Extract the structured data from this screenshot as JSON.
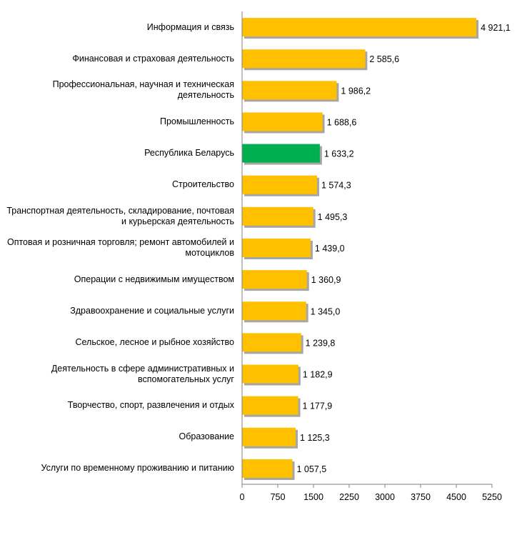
{
  "chart_data": {
    "type": "bar",
    "orientation": "horizontal",
    "categories": [
      "Информация  и связь",
      "Финансовая и страховая деятельность",
      "Профессиональная,  научная и техническая деятельность",
      "Промышленность",
      "Республика Беларусь",
      "Строительство",
      "Транспортная  деятельность, складирование, почтовая  и курьерская деятельность",
      "Оптовая  и розничная торговля;  ремонт автомобилей  и мотоциклов",
      "Операции  с недвижимым  имуществом",
      "Здравоохранение  и социальные  услуги",
      "Сельское,  лесное и рыбное  хозяйство",
      "Деятельность  в сфере административных  и вспомогательных  услуг",
      "Творчество,  спорт,  развлечения  и отдых",
      "Образование",
      "Услуги по временному  проживанию  и питанию"
    ],
    "values": [
      4921.1,
      2585.6,
      1986.2,
      1688.6,
      1633.2,
      1574.3,
      1495.3,
      1439.0,
      1360.9,
      1345.0,
      1239.8,
      1182.9,
      1177.9,
      1125.3,
      1057.5
    ],
    "value_labels": [
      "4 921,1",
      "2 585,6",
      "1 986,2",
      "1 688,6",
      "1 633,2",
      "1 574,3",
      "1 495,3",
      "1 439,0",
      "1 360,9",
      "1 345,0",
      "1 239,8",
      "1 182,9",
      "1 177,9",
      "1 125,3",
      "1 057,5"
    ],
    "highlight_index": 4,
    "xlim": [
      0,
      5250
    ],
    "xticks": [
      0,
      750,
      1500,
      2250,
      3000,
      3750,
      4500,
      5250
    ],
    "grid": false,
    "colors": {
      "bar": "#FFC000",
      "highlight": "#00B050",
      "shadow": "#A6A6A6",
      "axis": "#808080"
    }
  }
}
